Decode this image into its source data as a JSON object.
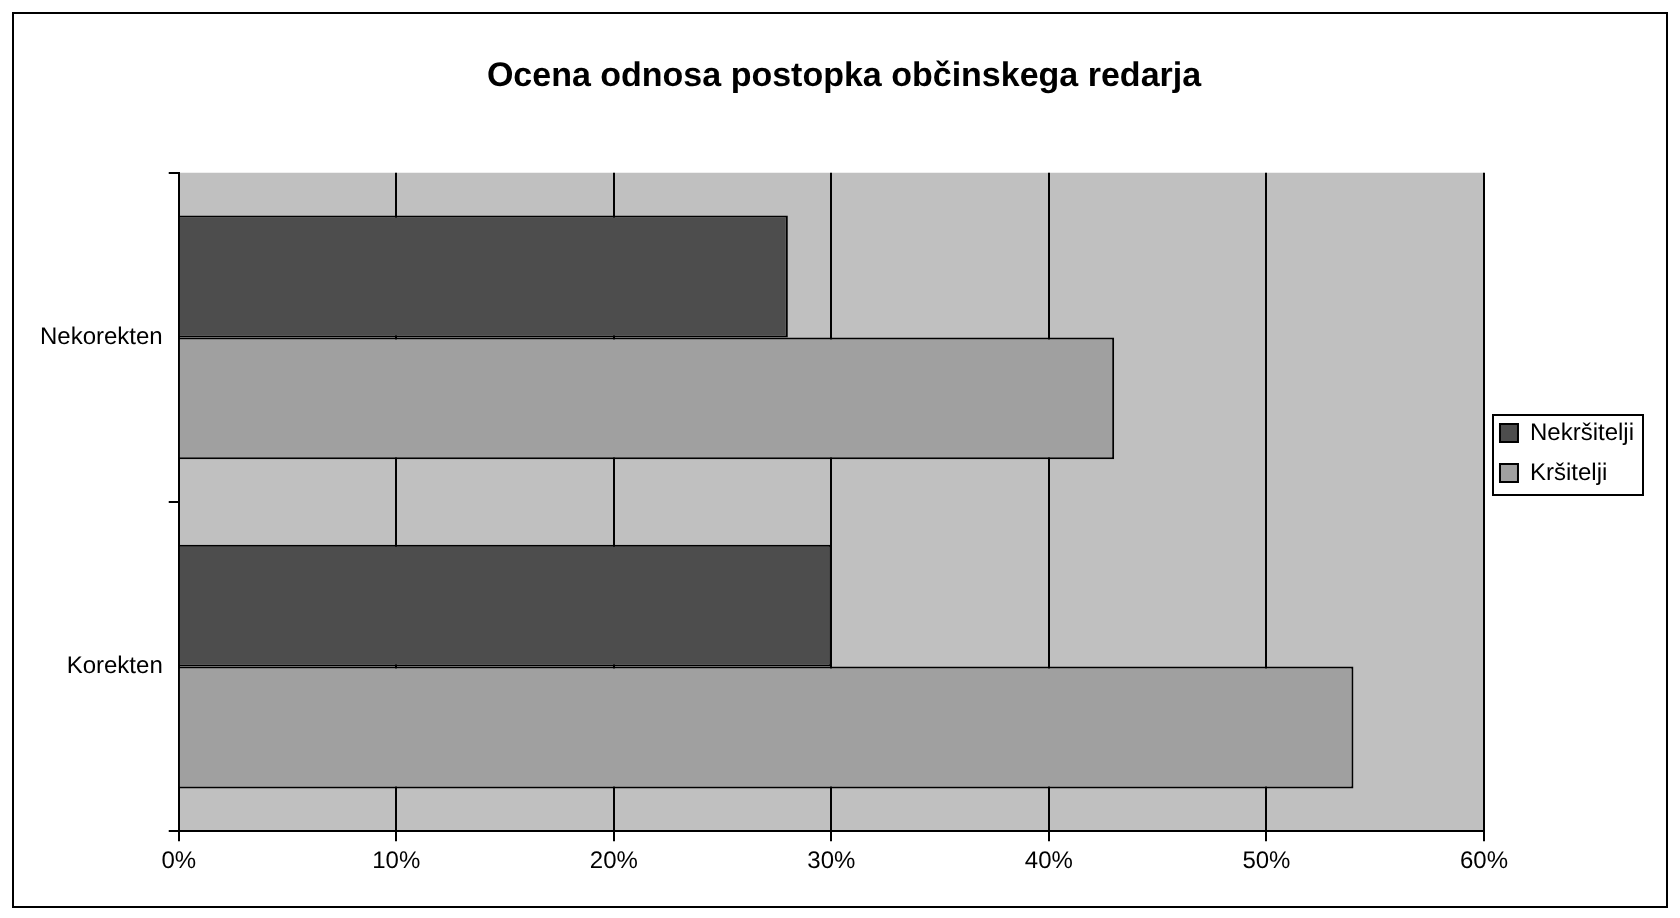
{
  "chart_data": {
    "type": "bar",
    "orientation": "horizontal",
    "title": "Ocena odnosa postopka občinskega redarja",
    "categories": [
      "Nekorekten",
      "Korekten"
    ],
    "series": [
      {
        "name": "Nekršitelji",
        "color": "#4d4d4d",
        "values": [
          28,
          30
        ]
      },
      {
        "name": "Kršitelji",
        "color": "#a0a0a0",
        "values": [
          43,
          54
        ]
      }
    ],
    "xlim": [
      0,
      60
    ],
    "xticks": [
      {
        "value": 0,
        "label": "0%"
      },
      {
        "value": 10,
        "label": "10%"
      },
      {
        "value": 20,
        "label": "20%"
      },
      {
        "value": 30,
        "label": "30%"
      },
      {
        "value": 40,
        "label": "40%"
      },
      {
        "value": 50,
        "label": "50%"
      },
      {
        "value": 60,
        "label": "60%"
      }
    ],
    "grid": "x",
    "legend": "right"
  }
}
